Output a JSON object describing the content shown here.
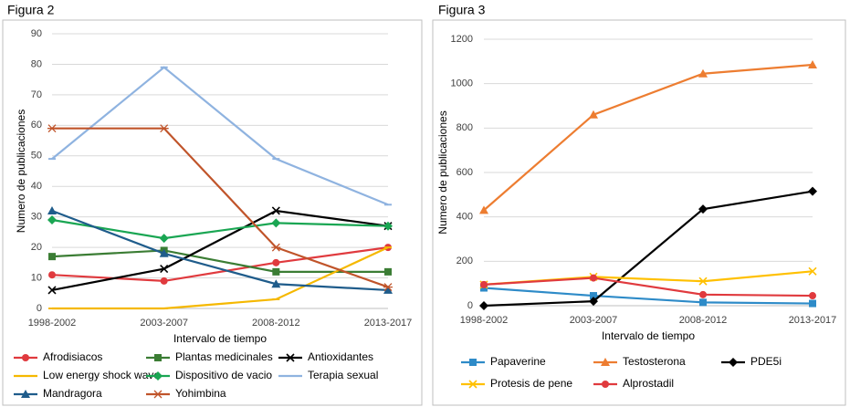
{
  "chart_data": [
    {
      "type": "line",
      "title": "Figura 2",
      "x_label": "Intervalo de tiempo",
      "y_label": "Numero de publicaciones",
      "categories": [
        "1998-2002",
        "2003-2007",
        "2008-2012",
        "2013-2017"
      ],
      "ylim": [
        0,
        90
      ],
      "yticks": [
        0,
        10,
        20,
        30,
        40,
        50,
        60,
        70,
        80,
        90
      ],
      "grid": true,
      "series": [
        {
          "name": "Afrodisiacos",
          "color": "#e03a3e",
          "marker": "circle",
          "values": [
            11,
            9,
            15,
            20
          ]
        },
        {
          "name": "Plantas medicinales",
          "color": "#3b7d34",
          "marker": "square",
          "values": [
            17,
            19,
            12,
            12
          ]
        },
        {
          "name": "Antioxidantes",
          "color": "#000000",
          "marker": "x",
          "values": [
            6,
            13,
            32,
            27
          ]
        },
        {
          "name": "Low energy shock wave",
          "color": "#f5b800",
          "marker": "dash",
          "values": [
            0,
            0,
            3,
            20
          ]
        },
        {
          "name": "Dispositivo de vacio",
          "color": "#1aa653",
          "marker": "diamond",
          "values": [
            29,
            23,
            28,
            27
          ]
        },
        {
          "name": "Terapia sexual",
          "color": "#8fb3e0",
          "marker": "dash",
          "values": [
            49,
            79,
            49,
            34
          ]
        },
        {
          "name": "Mandragora",
          "color": "#1f5c8b",
          "marker": "triangle",
          "values": [
            32,
            18,
            8,
            6
          ]
        },
        {
          "name": "Yohimbina",
          "color": "#c0542a",
          "marker": "asterisk",
          "values": [
            59,
            59,
            20,
            7
          ]
        }
      ]
    },
    {
      "type": "line",
      "title": "Figura 3",
      "x_label": "Intervalo de tiempo",
      "y_label": "Numero de publicaciones",
      "categories": [
        "1998-2002",
        "2003-2007",
        "2008-2012",
        "2013-2017"
      ],
      "ylim": [
        0,
        1200
      ],
      "yticks": [
        0,
        200,
        400,
        600,
        800,
        1000,
        1200
      ],
      "grid": true,
      "series": [
        {
          "name": "Papaverine",
          "color": "#2e8bc8",
          "marker": "square",
          "values": [
            80,
            45,
            15,
            10
          ]
        },
        {
          "name": "Testosterona",
          "color": "#ed7d31",
          "marker": "triangle",
          "values": [
            430,
            860,
            1045,
            1085
          ]
        },
        {
          "name": "PDE5i",
          "color": "#000000",
          "marker": "diamond",
          "values": [
            0,
            20,
            435,
            515
          ]
        },
        {
          "name": "Protesis de pene",
          "color": "#ffc000",
          "marker": "x",
          "values": [
            95,
            130,
            110,
            155
          ]
        },
        {
          "name": "Alprostadil",
          "color": "#e03a3e",
          "marker": "circle",
          "values": [
            95,
            125,
            50,
            45
          ]
        }
      ]
    }
  ]
}
